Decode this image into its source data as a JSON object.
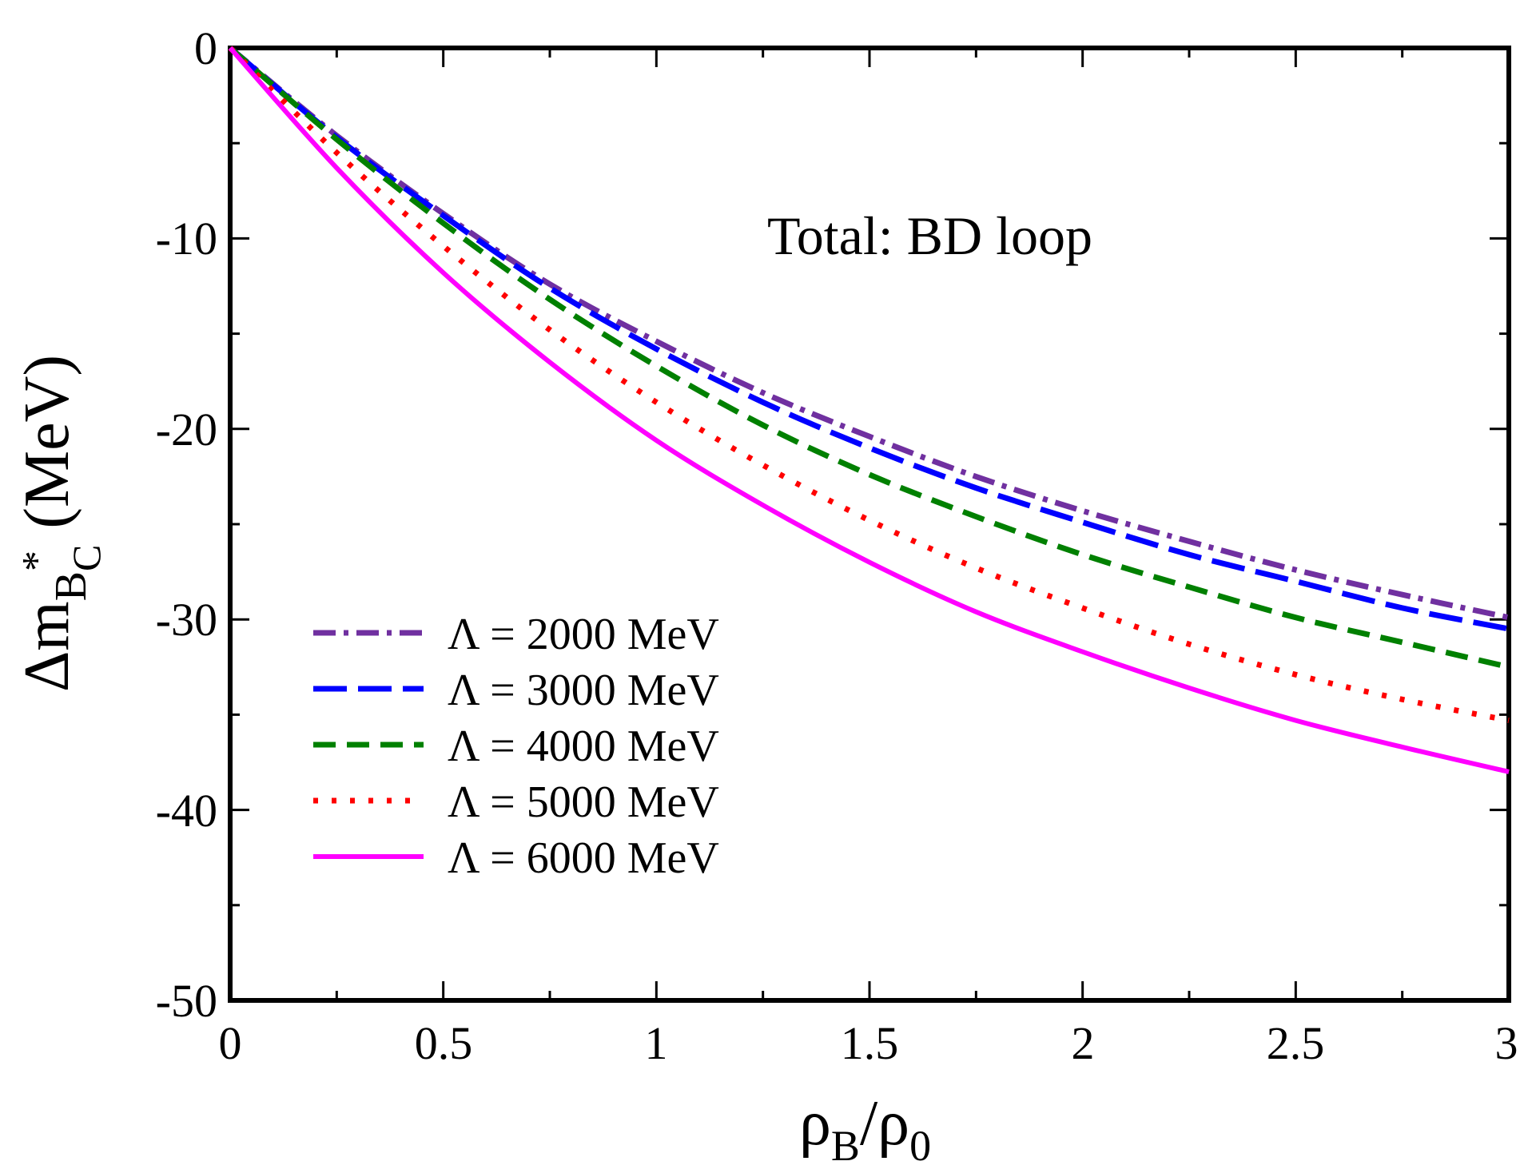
{
  "chart_data": {
    "type": "line",
    "title": "",
    "annotation": "Total: BD loop",
    "xlabel": {
      "main": "ρ",
      "sub1": "B",
      "sep": "/ρ",
      "sub2": "0"
    },
    "ylabel": {
      "prefix": "Δm",
      "sub": "B",
      "sup": "*",
      "subsub": "C",
      "units": " (MeV)"
    },
    "xlim": [
      0,
      3
    ],
    "ylim": [
      -50,
      0
    ],
    "xticks": [
      0,
      0.5,
      1,
      1.5,
      2,
      2.5,
      3
    ],
    "xtick_labels": [
      "0",
      "0.5",
      "1",
      "1.5",
      "2",
      "2.5",
      "3"
    ],
    "yticks": [
      0,
      -10,
      -20,
      -30,
      -40,
      -50
    ],
    "ytick_labels": [
      "0",
      "-10",
      "-20",
      "-30",
      "-40",
      "-50"
    ],
    "x": [
      0,
      0.25,
      0.5,
      0.75,
      1.0,
      1.25,
      1.5,
      1.75,
      2.0,
      2.25,
      2.5,
      2.75,
      3.0
    ],
    "series": [
      {
        "name": "Λ = 2000 MeV",
        "color": "#7030a0",
        "style": "dashdot",
        "values": [
          0,
          -4.6,
          -8.7,
          -12.4,
          -15.4,
          -18.1,
          -20.4,
          -22.5,
          -24.3,
          -25.9,
          -27.4,
          -28.7,
          -29.9
        ]
      },
      {
        "name": "Λ = 3000 MeV",
        "color": "#0000ff",
        "style": "longdash",
        "values": [
          0,
          -4.7,
          -8.8,
          -12.6,
          -15.8,
          -18.6,
          -21.0,
          -23.1,
          -24.9,
          -26.6,
          -28.0,
          -29.4,
          -30.5
        ]
      },
      {
        "name": "Λ = 4000 MeV",
        "color": "#008000",
        "style": "dash",
        "values": [
          0,
          -4.8,
          -9.2,
          -13.2,
          -16.7,
          -19.8,
          -22.4,
          -24.6,
          -26.6,
          -28.3,
          -29.9,
          -31.2,
          -32.5
        ]
      },
      {
        "name": "Λ = 5000 MeV",
        "color": "#ff0000",
        "style": "dot",
        "values": [
          0,
          -5.5,
          -10.4,
          -14.8,
          -18.6,
          -21.9,
          -24.8,
          -27.3,
          -29.4,
          -31.3,
          -32.9,
          -34.2,
          -35.3
        ]
      },
      {
        "name": "Λ = 6000 MeV",
        "color": "#ff00ff",
        "style": "solid",
        "values": [
          0,
          -6.3,
          -11.8,
          -16.5,
          -20.6,
          -24.0,
          -27.0,
          -29.6,
          -31.7,
          -33.6,
          -35.3,
          -36.7,
          -38.0
        ]
      }
    ]
  }
}
